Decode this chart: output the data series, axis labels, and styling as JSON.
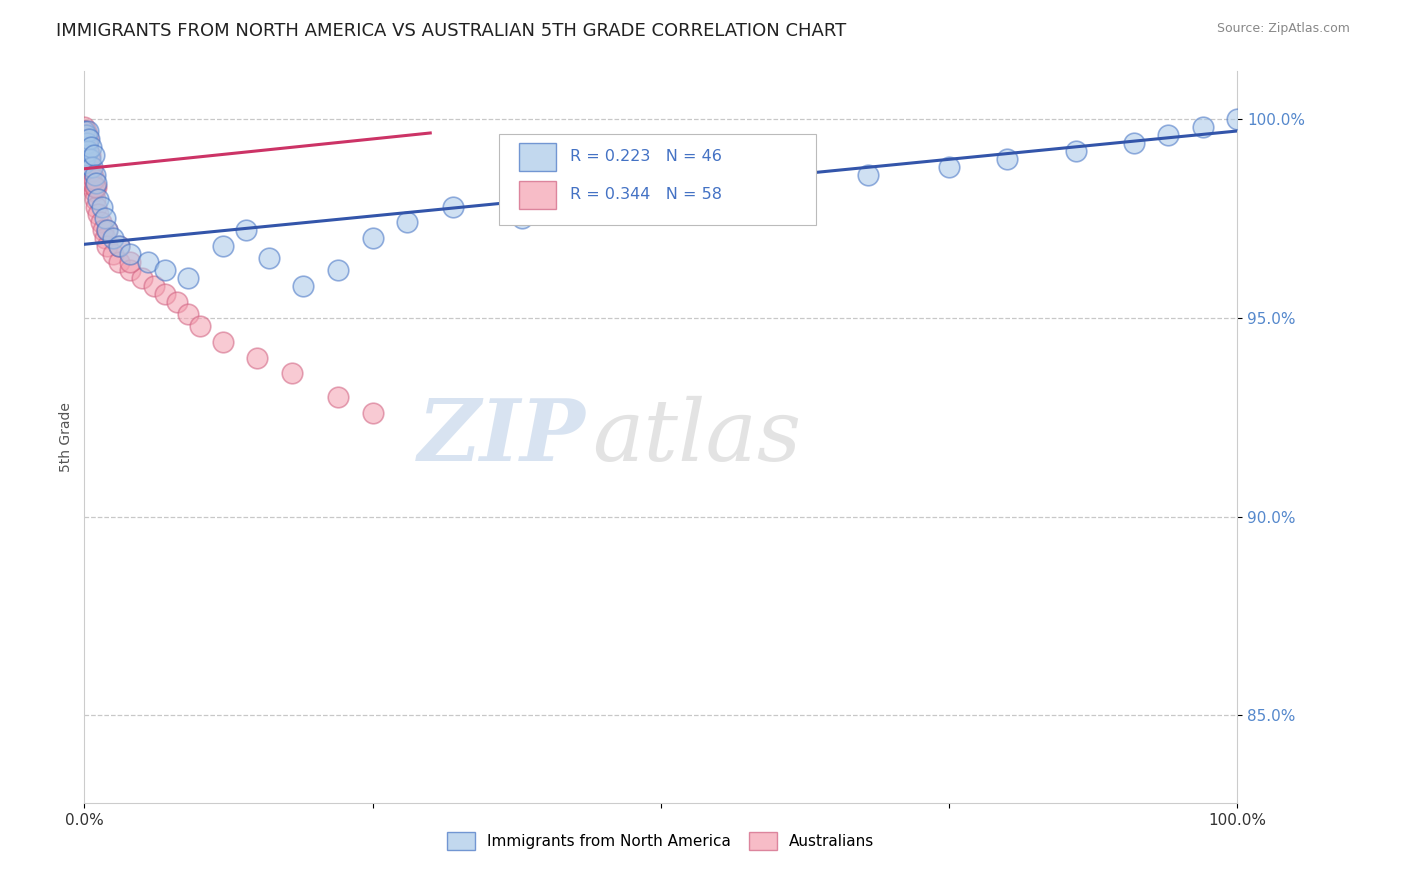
{
  "title": "IMMIGRANTS FROM NORTH AMERICA VS AUSTRALIAN 5TH GRADE CORRELATION CHART",
  "source": "Source: ZipAtlas.com",
  "ylabel": "5th Grade",
  "xlim": [
    0.0,
    1.0
  ],
  "ylim": [
    0.828,
    1.012
  ],
  "yticks": [
    0.85,
    0.9,
    0.95,
    1.0
  ],
  "ytick_labels": [
    "85.0%",
    "90.0%",
    "95.0%",
    "100.0%"
  ],
  "xtick_positions": [
    0.0,
    0.25,
    0.5,
    0.75,
    1.0
  ],
  "xtick_labels": [
    "0.0%",
    "",
    "",
    "",
    "100.0%"
  ],
  "legend_entries": [
    {
      "label": "R = 0.223   N = 46",
      "color_fill": "#a8c8e8",
      "color_edge": "#4472c4"
    },
    {
      "label": "R = 0.344   N = 58",
      "color_fill": "#f4a0b0",
      "color_edge": "#c0507a"
    }
  ],
  "bottom_legend": [
    "Immigrants from North America",
    "Australians"
  ],
  "blue_fill": "#a8c8e8",
  "blue_edge": "#4472c4",
  "pink_fill": "#f4a0b0",
  "pink_edge": "#d06080",
  "blue_line": "#3355aa",
  "pink_line": "#cc3366",
  "watermark_zip": "ZIP",
  "watermark_atlas": "atlas",
  "grid_color": "#c8c8c8",
  "title_color": "#222222",
  "yticklabel_color": "#5588cc",
  "xticklabel_color": "#333333",
  "source_color": "#888888",
  "background": "#ffffff",
  "blue_x": [
    0.0,
    0.0,
    0.0,
    0.001,
    0.001,
    0.002,
    0.003,
    0.003,
    0.004,
    0.005,
    0.006,
    0.007,
    0.008,
    0.009,
    0.01,
    0.012,
    0.015,
    0.018,
    0.02,
    0.025,
    0.03,
    0.04,
    0.055,
    0.07,
    0.09,
    0.12,
    0.14,
    0.16,
    0.19,
    0.22,
    0.25,
    0.28,
    0.32,
    0.38,
    0.44,
    0.5,
    0.56,
    0.62,
    0.68,
    0.75,
    0.8,
    0.86,
    0.91,
    0.94,
    0.97,
    1.0
  ],
  "blue_y": [
    0.997,
    0.993,
    0.989,
    0.996,
    0.991,
    0.994,
    0.997,
    0.992,
    0.995,
    0.99,
    0.993,
    0.988,
    0.991,
    0.986,
    0.984,
    0.98,
    0.978,
    0.975,
    0.972,
    0.97,
    0.968,
    0.966,
    0.964,
    0.962,
    0.96,
    0.968,
    0.972,
    0.965,
    0.958,
    0.962,
    0.97,
    0.974,
    0.978,
    0.975,
    0.978,
    0.98,
    0.982,
    0.984,
    0.986,
    0.988,
    0.99,
    0.992,
    0.994,
    0.996,
    0.998,
    1.0
  ],
  "pink_x": [
    0.0,
    0.0,
    0.0,
    0.0,
    0.0,
    0.0,
    0.0,
    0.0,
    0.0,
    0.0,
    0.0,
    0.0,
    0.0,
    0.0,
    0.0,
    0.001,
    0.001,
    0.001,
    0.001,
    0.001,
    0.002,
    0.002,
    0.003,
    0.003,
    0.004,
    0.005,
    0.006,
    0.007,
    0.008,
    0.009,
    0.01,
    0.012,
    0.014,
    0.016,
    0.018,
    0.02,
    0.025,
    0.03,
    0.04,
    0.05,
    0.06,
    0.07,
    0.08,
    0.09,
    0.1,
    0.12,
    0.15,
    0.18,
    0.22,
    0.25,
    0.01,
    0.02,
    0.03,
    0.04,
    0.005,
    0.007,
    0.008,
    0.009
  ],
  "pink_y": [
    0.998,
    0.997,
    0.996,
    0.995,
    0.994,
    0.993,
    0.992,
    0.991,
    0.99,
    0.989,
    0.988,
    0.987,
    0.986,
    0.985,
    0.984,
    0.997,
    0.995,
    0.993,
    0.991,
    0.989,
    0.996,
    0.993,
    0.995,
    0.992,
    0.99,
    0.988,
    0.986,
    0.984,
    0.982,
    0.98,
    0.978,
    0.976,
    0.974,
    0.972,
    0.97,
    0.968,
    0.966,
    0.964,
    0.962,
    0.96,
    0.958,
    0.956,
    0.954,
    0.951,
    0.948,
    0.944,
    0.94,
    0.936,
    0.93,
    0.926,
    0.983,
    0.972,
    0.968,
    0.964,
    0.991,
    0.987,
    0.985,
    0.983
  ],
  "blue_line_x0": 0.0,
  "blue_line_x1": 1.0,
  "blue_line_y0": 0.9685,
  "blue_line_y1": 0.997,
  "pink_line_x0": 0.0,
  "pink_line_x1": 0.3,
  "pink_line_y0": 0.9875,
  "pink_line_y1": 0.9965
}
